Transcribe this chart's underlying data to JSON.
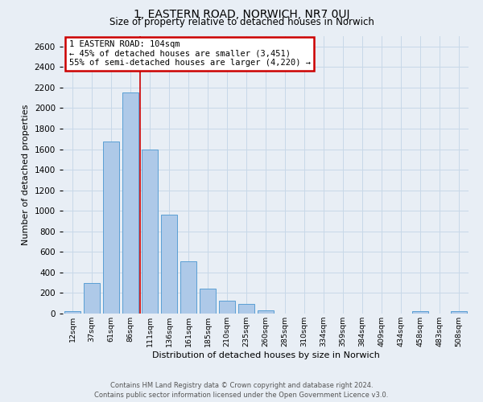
{
  "title": "1, EASTERN ROAD, NORWICH, NR7 0UJ",
  "subtitle": "Size of property relative to detached houses in Norwich",
  "xlabel": "Distribution of detached houses by size in Norwich",
  "ylabel": "Number of detached properties",
  "bar_labels": [
    "12sqm",
    "37sqm",
    "61sqm",
    "86sqm",
    "111sqm",
    "136sqm",
    "161sqm",
    "185sqm",
    "210sqm",
    "235sqm",
    "260sqm",
    "285sqm",
    "310sqm",
    "334sqm",
    "359sqm",
    "384sqm",
    "409sqm",
    "434sqm",
    "458sqm",
    "483sqm",
    "508sqm"
  ],
  "bar_values": [
    20,
    295,
    1675,
    2150,
    1600,
    960,
    510,
    245,
    125,
    95,
    30,
    0,
    0,
    0,
    0,
    0,
    0,
    0,
    20,
    0,
    20
  ],
  "bar_color": "#aec9e8",
  "bar_edge_color": "#5a9fd4",
  "grid_color": "#c8d8e8",
  "background_color": "#e8eef5",
  "vline_color": "#cc0000",
  "vline_position": 3.5,
  "annotation_text": "1 EASTERN ROAD: 104sqm\n← 45% of detached houses are smaller (3,451)\n55% of semi-detached houses are larger (4,220) →",
  "annotation_box_color": "#ffffff",
  "annotation_box_edge_color": "#cc0000",
  "footer_line1": "Contains HM Land Registry data © Crown copyright and database right 2024.",
  "footer_line2": "Contains public sector information licensed under the Open Government Licence v3.0.",
  "ylim": [
    0,
    2700
  ],
  "yticks": [
    0,
    200,
    400,
    600,
    800,
    1000,
    1200,
    1400,
    1600,
    1800,
    2000,
    2200,
    2400,
    2600
  ]
}
